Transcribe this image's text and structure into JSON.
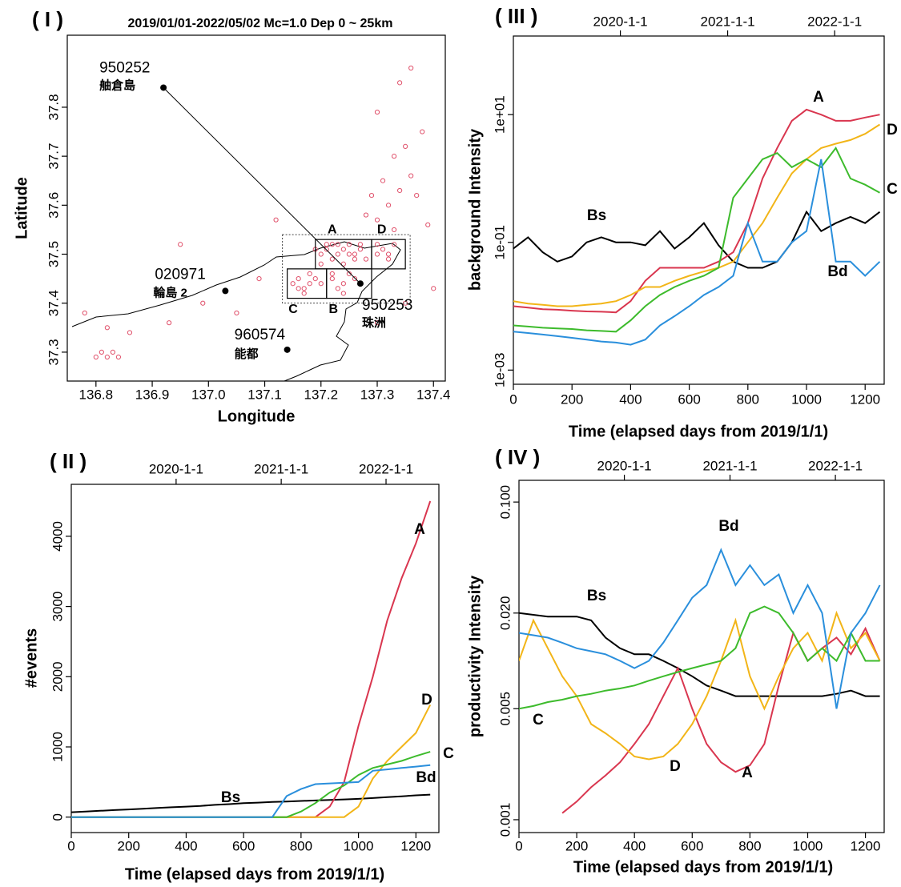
{
  "chart_data": [
    {
      "type": "map",
      "panel_label": "( I )",
      "title": "2019/01/01-2022/05/02  Mc=1.0 Dep 0 ~ 25km",
      "x_label": "Longitude",
      "y_label": "Latitude",
      "xlim": [
        136.749,
        137.421
      ],
      "ylim": [
        37.241,
        37.947
      ],
      "xticks": [
        136.8,
        136.9,
        {
          "value": 137,
          "label": "137.0"
        },
        137.1,
        137.2,
        137.3,
        137.4
      ],
      "yticks": [
        37.3,
        37.4,
        37.5,
        37.6,
        37.7,
        37.8
      ],
      "color": "#e0506a",
      "x": [
        137.2,
        137.21,
        137.22,
        137.23,
        137.24,
        137.25,
        137.26,
        137.27,
        137.28,
        137.2,
        137.22,
        137.24,
        137.26,
        137.21,
        137.23,
        137.25,
        137.19,
        137.27,
        137.3,
        137.31,
        137.32,
        137.33,
        137.3,
        137.32,
        137.15,
        137.16,
        137.17,
        137.18,
        137.19,
        137.16,
        137.18,
        137.2,
        137.22,
        137.23,
        137.24,
        137.25,
        137.26,
        137.24,
        137.22,
        137.17,
        137.3,
        137.32,
        137.34,
        137.36,
        137.33,
        137.35,
        137.38,
        137.37,
        137.31,
        137.3,
        137.34,
        137.36,
        137.39,
        137.29,
        137.28,
        137.33,
        137.4,
        136.8,
        136.81,
        136.82,
        136.83,
        136.84,
        136.82,
        136.86,
        136.93,
        136.99,
        137.05,
        137.12,
        136.78,
        137.3,
        137.35,
        137.09,
        136.95
      ],
      "y": [
        37.5,
        37.51,
        37.52,
        37.5,
        37.51,
        37.52,
        37.5,
        37.51,
        37.49,
        37.48,
        37.49,
        37.48,
        37.49,
        37.52,
        37.52,
        37.5,
        37.51,
        37.52,
        37.5,
        37.51,
        37.5,
        37.52,
        37.52,
        37.49,
        37.44,
        37.45,
        37.43,
        37.44,
        37.45,
        37.43,
        37.46,
        37.44,
        37.45,
        37.43,
        37.44,
        37.46,
        37.45,
        37.42,
        37.46,
        37.42,
        37.57,
        37.6,
        37.63,
        37.66,
        37.7,
        37.72,
        37.75,
        37.62,
        37.65,
        37.79,
        37.85,
        37.88,
        37.56,
        37.62,
        37.58,
        37.55,
        37.43,
        37.29,
        37.3,
        37.29,
        37.3,
        37.29,
        37.35,
        37.34,
        37.36,
        37.4,
        37.38,
        37.57,
        37.38,
        37.36,
        37.4,
        37.45,
        37.52
      ],
      "stations": [
        {
          "id": "950252",
          "name": "舳倉島",
          "lon": 136.92,
          "lat": 37.84
        },
        {
          "id": "020971",
          "name": "輪島 2",
          "lon": 137.03,
          "lat": 37.425
        },
        {
          "id": "950253",
          "name": "珠洲",
          "lon": 137.27,
          "lat": 37.44
        },
        {
          "id": "960574",
          "name": "能都",
          "lon": 137.14,
          "lat": 37.305
        }
      ],
      "regions": [
        {
          "name": "A",
          "lon": [
            137.19,
            137.29
          ],
          "lat": [
            37.47,
            37.53
          ]
        },
        {
          "name": "D",
          "lon": [
            137.29,
            137.35
          ],
          "lat": [
            37.47,
            37.53
          ]
        },
        {
          "name": "C",
          "lon": [
            137.14,
            137.21
          ],
          "lat": [
            37.41,
            37.47
          ]
        },
        {
          "name": "B",
          "lon": [
            137.21,
            137.29
          ],
          "lat": [
            37.41,
            37.47
          ]
        }
      ]
    },
    {
      "type": "line",
      "panel_label": "( III )",
      "x_label": "Time (elapsed days from 2019/1/1)",
      "y_label": "background Intensity",
      "log_y": true,
      "xlim": [
        0,
        1265
      ],
      "ylim": [
        0.0006,
        170
      ],
      "xticks": [
        0,
        200,
        400,
        600,
        800,
        1000,
        1200
      ],
      "x2ticks": [
        {
          "value": 365,
          "label": "2020-1-1"
        },
        {
          "value": 731,
          "label": "2021-1-1"
        },
        {
          "value": 1096,
          "label": "2022-1-1"
        }
      ],
      "yticks": [
        {
          "value": 0.001,
          "label": "1e-03"
        },
        {
          "value": 0.1,
          "label": "1e-01"
        },
        {
          "value": 10,
          "label": "1e+01"
        }
      ],
      "x": [
        0,
        50,
        100,
        150,
        200,
        250,
        300,
        350,
        400,
        450,
        500,
        550,
        600,
        650,
        700,
        750,
        800,
        850,
        900,
        950,
        1000,
        1050,
        1100,
        1150,
        1200,
        1250
      ],
      "series": [
        {
          "name": "Bs",
          "color": "#000000",
          "values": [
            0.08,
            0.12,
            0.07,
            0.05,
            0.06,
            0.1,
            0.12,
            0.1,
            0.1,
            0.09,
            0.15,
            0.08,
            0.12,
            0.2,
            0.09,
            0.05,
            0.04,
            0.04,
            0.05,
            0.1,
            0.3,
            0.15,
            0.2,
            0.25,
            0.2,
            0.3
          ]
        },
        {
          "name": "A",
          "color": "#d9364f",
          "values": [
            0.01,
            0.0095,
            0.009,
            0.0088,
            0.0085,
            0.0083,
            0.0082,
            0.008,
            0.012,
            0.025,
            0.04,
            0.04,
            0.04,
            0.04,
            0.05,
            0.07,
            0.2,
            1,
            3,
            8,
            12,
            10,
            8,
            8,
            9,
            10
          ]
        },
        {
          "name": "D",
          "color": "#f2b518",
          "values": [
            0.012,
            0.011,
            0.0105,
            0.01,
            0.01,
            0.0105,
            0.011,
            0.012,
            0.015,
            0.02,
            0.02,
            0.025,
            0.03,
            0.035,
            0.04,
            0.05,
            0.1,
            0.2,
            0.5,
            1.2,
            2,
            3,
            3.5,
            4,
            5,
            7
          ]
        },
        {
          "name": "C",
          "color": "#3dbb2c",
          "values": [
            0.005,
            0.0048,
            0.0046,
            0.0045,
            0.0044,
            0.0042,
            0.0041,
            0.004,
            0.006,
            0.01,
            0.015,
            0.02,
            0.025,
            0.03,
            0.04,
            0.5,
            1,
            2,
            2.5,
            1.5,
            2,
            1.5,
            3,
            1,
            0.8,
            0.6
          ]
        },
        {
          "name": "Bd",
          "color": "#2a8fdc",
          "values": [
            0.004,
            0.0038,
            0.0036,
            0.0034,
            0.0032,
            0.003,
            0.0028,
            0.0027,
            0.0025,
            0.003,
            0.005,
            0.007,
            0.01,
            0.015,
            0.02,
            0.03,
            0.2,
            0.05,
            0.05,
            0.1,
            0.15,
            2,
            0.05,
            0.05,
            0.03,
            0.05
          ]
        }
      ]
    },
    {
      "type": "line",
      "panel_label": "( II )",
      "x_label": "Time (elapsed days from 2019/1/1)",
      "y_label": "#events",
      "log_y": false,
      "xlim": [
        0,
        1280
      ],
      "ylim": [
        -220,
        4740
      ],
      "xticks": [
        0,
        200,
        400,
        600,
        800,
        1000,
        1200
      ],
      "x2ticks": [
        {
          "value": 365,
          "label": "2020-1-1"
        },
        {
          "value": 731,
          "label": "2021-1-1"
        },
        {
          "value": 1096,
          "label": "2022-1-1"
        }
      ],
      "yticks": [
        0,
        1000,
        2000,
        3000,
        4000
      ],
      "x": [
        0,
        50,
        100,
        150,
        200,
        250,
        300,
        350,
        400,
        450,
        500,
        550,
        600,
        650,
        700,
        750,
        800,
        850,
        900,
        950,
        1000,
        1050,
        1100,
        1150,
        1200,
        1250
      ],
      "series": [
        {
          "name": "Bs",
          "color": "#000000",
          "values": [
            70,
            80,
            90,
            100,
            110,
            120,
            130,
            140,
            150,
            160,
            175,
            185,
            200,
            207,
            215,
            222,
            230,
            237,
            245,
            252,
            260,
            272,
            285,
            297,
            310,
            320
          ]
        },
        {
          "name": "A",
          "color": "#d9364f",
          "values": [
            0,
            0,
            0,
            0,
            0,
            0,
            0,
            0,
            0,
            0,
            0,
            0,
            0,
            0,
            0,
            0,
            0,
            0,
            150,
            500,
            1300,
            2000,
            2800,
            3400,
            3900,
            4500
          ]
        },
        {
          "name": "D",
          "color": "#f2b518",
          "values": [
            0,
            0,
            0,
            0,
            0,
            0,
            0,
            0,
            0,
            0,
            0,
            0,
            0,
            0,
            0,
            0,
            0,
            0,
            0,
            0,
            150,
            550,
            800,
            1000,
            1200,
            1600
          ]
        },
        {
          "name": "C",
          "color": "#3dbb2c",
          "values": [
            0,
            0,
            0,
            0,
            0,
            0,
            0,
            0,
            0,
            0,
            0,
            0,
            0,
            0,
            0,
            0,
            80,
            200,
            350,
            450,
            600,
            700,
            750,
            800,
            870,
            930
          ]
        },
        {
          "name": "Bd",
          "color": "#2a8fdc",
          "values": [
            0,
            0,
            0,
            0,
            0,
            0,
            0,
            0,
            0,
            0,
            0,
            0,
            0,
            0,
            0,
            300,
            400,
            470,
            480,
            490,
            500,
            660,
            680,
            700,
            720,
            740
          ]
        }
      ]
    },
    {
      "type": "line",
      "panel_label": "( IV )",
      "x_label": "Time (elapsed days from 2019/1/1)",
      "y_label": "productivity Intensity",
      "log_y": true,
      "xlim": [
        0,
        1265
      ],
      "ylim": [
        0.00083,
        0.137
      ],
      "xticks": [
        0,
        200,
        400,
        600,
        800,
        1000,
        1200
      ],
      "x2ticks": [
        {
          "value": 365,
          "label": "2020-1-1"
        },
        {
          "value": 731,
          "label": "2021-1-1"
        },
        {
          "value": 1096,
          "label": "2022-1-1"
        }
      ],
      "yticks": [
        0.001,
        0.005,
        {
          "value": 0.02,
          "label": "0.020"
        },
        {
          "value": 0.1,
          "label": "0.100"
        }
      ],
      "x": [
        0,
        50,
        100,
        150,
        200,
        250,
        300,
        350,
        400,
        450,
        500,
        550,
        600,
        650,
        700,
        750,
        800,
        850,
        900,
        950,
        1000,
        1050,
        1100,
        1150,
        1200,
        1250
      ],
      "series": [
        {
          "name": "Bs",
          "color": "#000000",
          "values": [
            0.02,
            0.0195,
            0.019,
            0.019,
            0.019,
            0.018,
            0.014,
            0.012,
            0.011,
            0.011,
            0.01,
            0.009,
            0.008,
            0.007,
            0.0065,
            0.006,
            0.006,
            0.006,
            0.006,
            0.006,
            0.006,
            0.006,
            0.0062,
            0.0065,
            0.006,
            0.006
          ]
        },
        {
          "name": "A",
          "color": "#d9364f",
          "values": [
            null,
            null,
            null,
            0.0011,
            0.0013,
            0.0016,
            0.0019,
            0.0023,
            0.003,
            0.004,
            0.006,
            0.009,
            0.005,
            0.003,
            0.0023,
            0.002,
            0.0022,
            0.003,
            0.007,
            0.015,
            0.01,
            0.012,
            0.014,
            0.011,
            0.016,
            0.01
          ]
        },
        {
          "name": "D",
          "color": "#f2b518",
          "values": [
            0.01,
            0.018,
            0.012,
            0.008,
            0.006,
            0.004,
            0.0035,
            0.003,
            0.0025,
            0.0024,
            0.0025,
            0.003,
            0.004,
            0.006,
            0.01,
            0.018,
            0.008,
            0.005,
            0.008,
            0.012,
            0.015,
            0.01,
            0.02,
            0.012,
            0.015,
            0.01
          ]
        },
        {
          "name": "C",
          "color": "#3dbb2c",
          "values": [
            0.005,
            0.0052,
            0.0055,
            0.0057,
            0.006,
            0.0062,
            0.0065,
            0.0067,
            0.007,
            0.0075,
            0.008,
            0.0085,
            0.009,
            0.0095,
            0.01,
            0.012,
            0.02,
            0.022,
            0.02,
            0.015,
            0.01,
            0.012,
            0.01,
            0.015,
            0.01,
            0.01
          ]
        },
        {
          "name": "Bd",
          "color": "#2a8fdc",
          "values": [
            0.015,
            0.0145,
            0.014,
            0.013,
            0.012,
            0.0115,
            0.011,
            0.01,
            0.009,
            0.01,
            0.013,
            0.018,
            0.025,
            0.03,
            0.05,
            0.03,
            0.04,
            0.03,
            0.035,
            0.02,
            0.03,
            0.02,
            0.005,
            0.015,
            0.02,
            0.03
          ]
        }
      ]
    }
  ]
}
